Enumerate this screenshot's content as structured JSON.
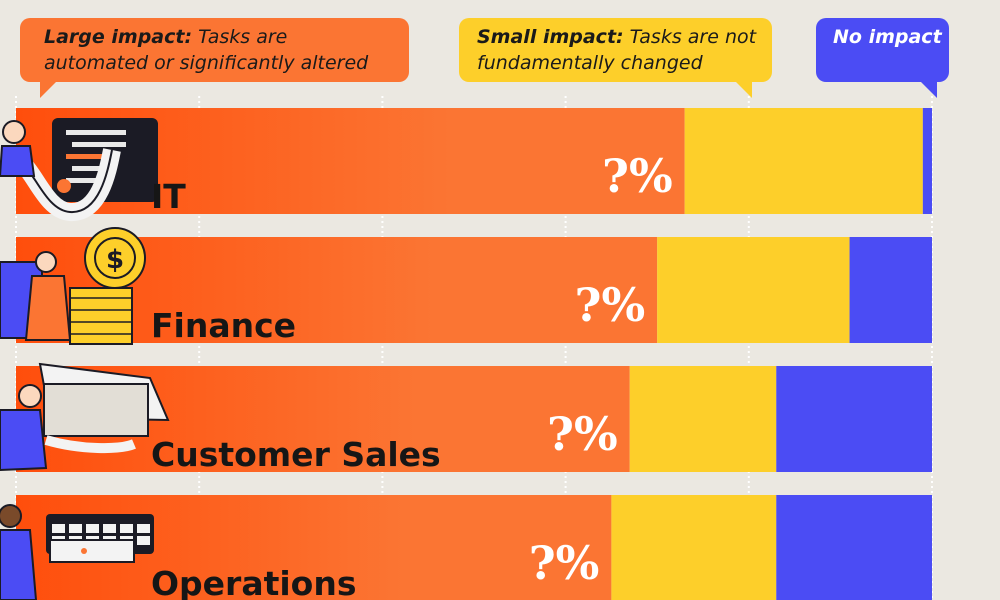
{
  "legend": {
    "large": {
      "bold": "Large impact:",
      "line1": "Tasks are",
      "line2": "automated or significantly altered"
    },
    "small": {
      "bold": "Small impact:",
      "line1": "Tasks are not",
      "line2": "fundamentally changed"
    },
    "none": {
      "bold": "No impact"
    }
  },
  "colors": {
    "large": "#fb7533",
    "large_deep": "#ff4e0c",
    "small": "#fdcf2a",
    "none": "#4b4cf4",
    "background": "#ebe8e1"
  },
  "icons": [
    "it-worker-illustration",
    "finance-worker-illustration",
    "sales-worker-illustration",
    "operations-worker-illustration"
  ],
  "chart_data": {
    "type": "bar",
    "orientation": "horizontal",
    "stacked": true,
    "categories": [
      "IT",
      "Finance",
      "Customer Sales",
      "Operations"
    ],
    "series": [
      {
        "name": "Large impact",
        "values": [
          73,
          70,
          67,
          65
        ],
        "label": "?%"
      },
      {
        "name": "Small impact",
        "values": [
          26,
          21,
          16,
          18
        ]
      },
      {
        "name": "No impact",
        "values": [
          1,
          9,
          17,
          17
        ]
      }
    ],
    "xlim": [
      0,
      100
    ],
    "grid": true
  }
}
